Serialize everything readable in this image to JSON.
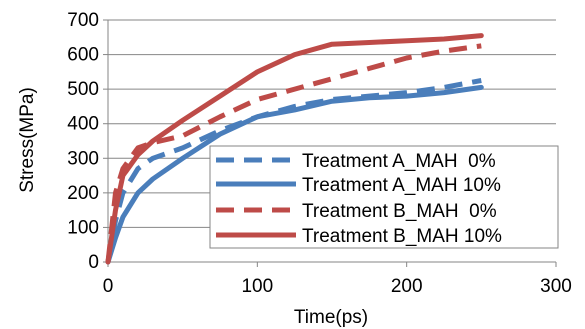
{
  "chart_data": {
    "type": "line",
    "title": "",
    "xlabel": "Time(ps)",
    "ylabel": "Stress(MPa)",
    "xlim": [
      0,
      300
    ],
    "ylim": [
      0,
      700
    ],
    "xticks": [
      0,
      100,
      200,
      300
    ],
    "yticks": [
      0,
      100,
      200,
      300,
      400,
      500,
      600,
      700
    ],
    "xtick_labels": [
      "0",
      "100",
      "200",
      "300"
    ],
    "ytick_labels": [
      "0",
      "100",
      "200",
      "300",
      "400",
      "500",
      "600",
      "700"
    ],
    "grid": "horizontal",
    "legend_position": "bottom-right",
    "series": [
      {
        "name": "Treatment A_MAH  0%",
        "color": "#4a7ebb",
        "dash": true,
        "x": [
          0,
          5,
          10,
          20,
          30,
          50,
          75,
          100,
          125,
          150,
          175,
          200,
          225,
          250
        ],
        "y": [
          0,
          120,
          200,
          270,
          300,
          330,
          380,
          420,
          450,
          470,
          480,
          490,
          505,
          525
        ]
      },
      {
        "name": "Treatment A_MAH 10%",
        "color": "#4a7ebb",
        "dash": false,
        "x": [
          0,
          5,
          10,
          20,
          30,
          50,
          75,
          100,
          125,
          150,
          175,
          200,
          225,
          250
        ],
        "y": [
          0,
          70,
          130,
          200,
          240,
          300,
          370,
          420,
          440,
          465,
          475,
          480,
          490,
          505
        ]
      },
      {
        "name": "Treatment B_MAH  0%",
        "color": "#be4b48",
        "dash": true,
        "x": [
          0,
          5,
          10,
          20,
          30,
          50,
          75,
          100,
          125,
          150,
          175,
          200,
          225,
          250
        ],
        "y": [
          0,
          200,
          270,
          330,
          345,
          365,
          420,
          470,
          500,
          530,
          560,
          590,
          610,
          625
        ]
      },
      {
        "name": "Treatment B_MAH 10%",
        "color": "#be4b48",
        "dash": false,
        "x": [
          0,
          5,
          10,
          20,
          30,
          50,
          75,
          100,
          125,
          150,
          175,
          200,
          225,
          250
        ],
        "y": [
          0,
          150,
          250,
          310,
          350,
          410,
          480,
          550,
          600,
          630,
          635,
          640,
          645,
          655
        ]
      }
    ]
  }
}
